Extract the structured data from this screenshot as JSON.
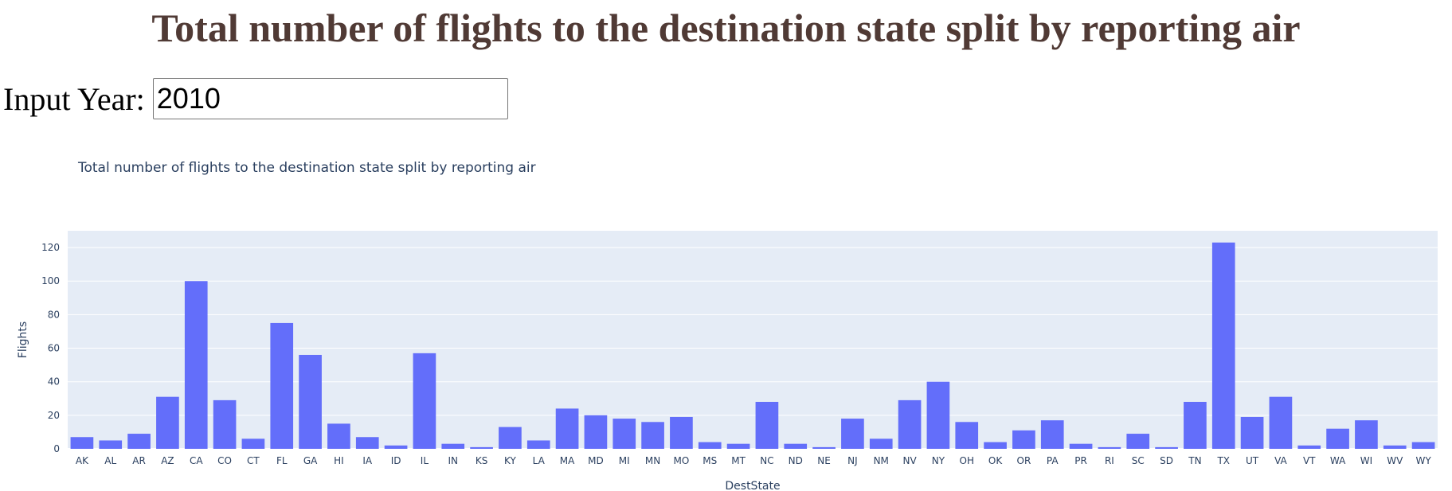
{
  "page": {
    "title": "Total number of flights to the destination state split by reporting air"
  },
  "year_input": {
    "label": "Input Year:",
    "value": "2010"
  },
  "colors": {
    "title": "#503A35",
    "bar": "#636EFA",
    "plot_bg": "#E5ECF6",
    "axis_text": "#2A3F5F"
  },
  "chart_data": {
    "type": "bar",
    "title": "Total number of flights to the destination state split by reporting air",
    "xlabel": "DestState",
    "ylabel": "Flights",
    "ylim": [
      0,
      130
    ],
    "yticks": [
      0,
      20,
      40,
      60,
      80,
      100,
      120
    ],
    "grid": true,
    "categories": [
      "AK",
      "AL",
      "AR",
      "AZ",
      "CA",
      "CO",
      "CT",
      "FL",
      "GA",
      "HI",
      "IA",
      "ID",
      "IL",
      "IN",
      "KS",
      "KY",
      "LA",
      "MA",
      "MD",
      "MI",
      "MN",
      "MO",
      "MS",
      "MT",
      "NC",
      "ND",
      "NE",
      "NJ",
      "NM",
      "NV",
      "NY",
      "OH",
      "OK",
      "OR",
      "PA",
      "PR",
      "RI",
      "SC",
      "SD",
      "TN",
      "TX",
      "UT",
      "VA",
      "VT",
      "WA",
      "WI",
      "WV",
      "WY"
    ],
    "values": [
      7,
      5,
      9,
      31,
      100,
      29,
      6,
      75,
      56,
      15,
      7,
      2,
      57,
      3,
      1,
      13,
      5,
      24,
      20,
      18,
      16,
      19,
      4,
      3,
      28,
      3,
      1,
      18,
      6,
      29,
      40,
      16,
      4,
      11,
      17,
      3,
      1,
      9,
      1,
      28,
      123,
      19,
      31,
      2,
      12,
      17,
      2,
      4
    ]
  }
}
